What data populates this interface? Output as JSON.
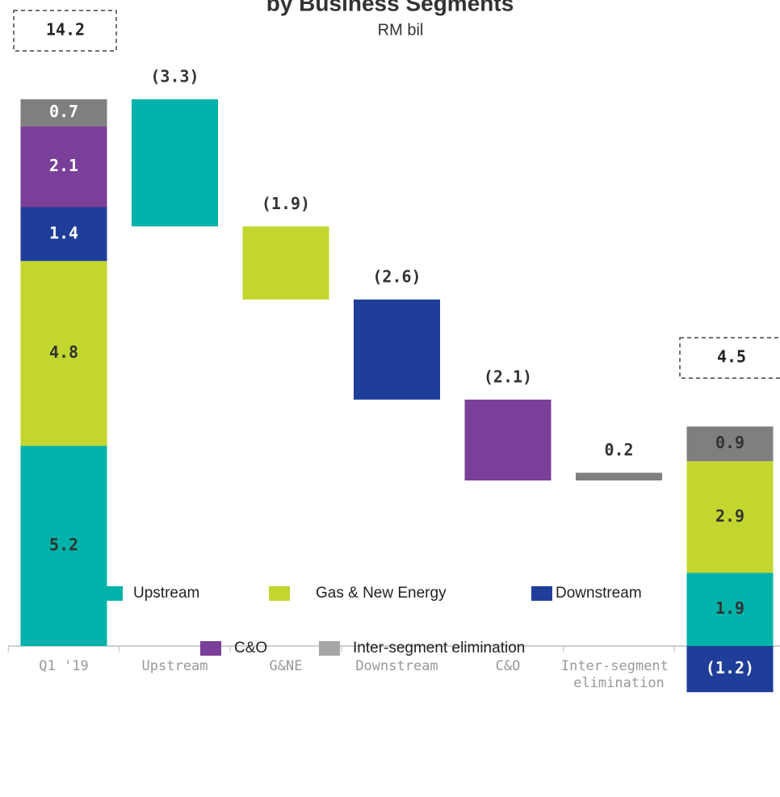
{
  "chart_data": {
    "type": "waterfall",
    "title": "by Business Segments",
    "subtitle": "RM bil",
    "categories": [
      "Q1 '19",
      "Upstream",
      "G&NE",
      "Downstream",
      "C&O",
      "Inter-segment elimination",
      "Q1 '20"
    ],
    "series": [
      {
        "name": "Upstream",
        "color": "#00b2a9",
        "values": [
          5.2,
          -3.3,
          null,
          null,
          null,
          null,
          1.9
        ],
        "value_labels": [
          null,
          "(3.3)",
          null,
          null,
          null,
          null,
          null
        ]
      },
      {
        "name": "Gas & New Energy",
        "color": "#c2d62f",
        "values": [
          4.8,
          null,
          -1.9,
          null,
          null,
          null,
          2.9
        ],
        "value_labels": [
          null,
          null,
          "(1.9)",
          null,
          null,
          null,
          null
        ]
      },
      {
        "name": "Downstream",
        "color": "#1f3e99",
        "values": [
          1.4,
          null,
          null,
          -2.6,
          null,
          null,
          -1.2
        ],
        "value_labels": [
          null,
          null,
          null,
          "(2.6)",
          null,
          null,
          "(1.2)"
        ]
      },
      {
        "name": "C&O",
        "color": "#7a3f98",
        "values": [
          2.1,
          null,
          null,
          null,
          -2.1,
          null,
          null
        ],
        "value_labels": [
          null,
          null,
          null,
          null,
          "(2.1)",
          null,
          null
        ]
      },
      {
        "name": "Inter-segment elimination",
        "color": "#7f7f7f",
        "values": [
          0.7,
          null,
          null,
          null,
          null,
          0.2,
          0.9
        ],
        "value_labels": [
          null,
          null,
          null,
          null,
          null,
          null,
          null
        ]
      }
    ],
    "totals": [
      14.2,
      null,
      null,
      null,
      null,
      null,
      4.5
    ]
  }
}
